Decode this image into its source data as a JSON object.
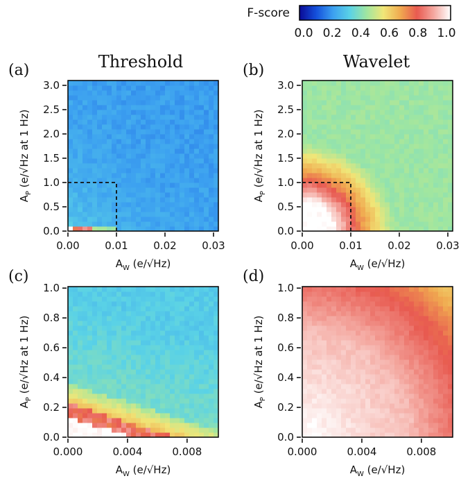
{
  "colorbar": {
    "label": "F-score",
    "ticks": [
      "0.0",
      "0.2",
      "0.4",
      "0.6",
      "0.8",
      "1.0"
    ],
    "range": [
      0,
      1
    ],
    "colormap": [
      "#0a0a96",
      "#1450dc",
      "#3ca0f0",
      "#5ad2e6",
      "#a0e6a0",
      "#f0e678",
      "#f0aa50",
      "#e85a50",
      "#f4a8a0",
      "#ffffff"
    ]
  },
  "chart_data": [
    {
      "type": "heatmap",
      "panel": "(a)",
      "title": "Threshold",
      "xlabel": "A",
      "xlabel_sub": "W",
      "xlabel_rest": " (e/√Hz)",
      "ylabel": "A",
      "ylabel_sub": "P",
      "ylabel_rest": " (e/√Hz at 1 Hz)",
      "xlim": [
        0,
        0.031
      ],
      "ylim": [
        0,
        3.1
      ],
      "x_ticks": [
        "0.00",
        "0.01",
        "0.02",
        "0.03"
      ],
      "x_tick_values": [
        0,
        0.01,
        0.02,
        0.03
      ],
      "y_ticks": [
        "0.0",
        "0.5",
        "1.0",
        "1.5",
        "2.0",
        "2.5",
        "3.0"
      ],
      "y_tick_values": [
        0,
        0.5,
        1,
        1.5,
        2,
        2.5,
        3
      ],
      "grid": [
        31,
        31
      ],
      "dashed_box": [
        0.01,
        1.0
      ],
      "model": "threshold",
      "values_note_high": 0.9,
      "values_background": 0.27
    },
    {
      "type": "heatmap",
      "panel": "(b)",
      "title": "Wavelet",
      "xlabel": "A",
      "xlabel_sub": "W",
      "xlabel_rest": " (e/√Hz)",
      "ylabel": "A",
      "ylabel_sub": "P",
      "ylabel_rest": " (e/√Hz at 1 Hz)",
      "xlim": [
        0,
        0.031
      ],
      "ylim": [
        0,
        3.1
      ],
      "x_ticks": [
        "0.00",
        "0.01",
        "0.02",
        "0.03"
      ],
      "x_tick_values": [
        0,
        0.01,
        0.02,
        0.03
      ],
      "y_ticks": [
        "0.0",
        "0.5",
        "1.0",
        "1.5",
        "2.0",
        "2.5",
        "3.0"
      ],
      "y_tick_values": [
        0,
        0.5,
        1,
        1.5,
        2,
        2.5,
        3
      ],
      "grid": [
        31,
        31
      ],
      "dashed_box": [
        0.01,
        1.0
      ],
      "model": "wavelet",
      "values_note_high": 1.0,
      "values_background": 0.42
    },
    {
      "type": "heatmap",
      "panel": "(c)",
      "title": "",
      "xlabel": "A",
      "xlabel_sub": "W",
      "xlabel_rest": " (e/√Hz)",
      "ylabel": "A",
      "ylabel_sub": "P",
      "ylabel_rest": " (e/√Hz at 1 Hz)",
      "xlim": [
        0,
        0.0101
      ],
      "ylim": [
        0,
        1.01
      ],
      "x_ticks": [
        "0.000",
        "0.004",
        "0.008"
      ],
      "x_tick_values": [
        0,
        0.004,
        0.008
      ],
      "y_ticks": [
        "0.0",
        "0.2",
        "0.4",
        "0.6",
        "0.8",
        "1.0"
      ],
      "y_tick_values": [
        0,
        0.2,
        0.4,
        0.6,
        0.8,
        1.0
      ],
      "grid": [
        31,
        31
      ],
      "dashed_box": null,
      "model": "threshold_zoom",
      "values_note_high": 1.0,
      "values_background": 0.35
    },
    {
      "type": "heatmap",
      "panel": "(d)",
      "title": "",
      "xlabel": "A",
      "xlabel_sub": "W",
      "xlabel_rest": " (e/√Hz)",
      "ylabel": "A",
      "ylabel_sub": "P",
      "ylabel_rest": " (e/√Hz at 1 Hz)",
      "xlim": [
        0,
        0.0101
      ],
      "ylim": [
        0,
        1.01
      ],
      "x_ticks": [
        "0.000",
        "0.004",
        "0.008"
      ],
      "x_tick_values": [
        0,
        0.004,
        0.008
      ],
      "y_ticks": [
        "0.0",
        "0.2",
        "0.4",
        "0.6",
        "0.8",
        "1.0"
      ],
      "y_tick_values": [
        0,
        0.2,
        0.4,
        0.6,
        0.8,
        1.0
      ],
      "grid": [
        31,
        31
      ],
      "dashed_box": null,
      "model": "wavelet_zoom",
      "values_note_high": 1.0,
      "values_background": 0.65
    }
  ]
}
